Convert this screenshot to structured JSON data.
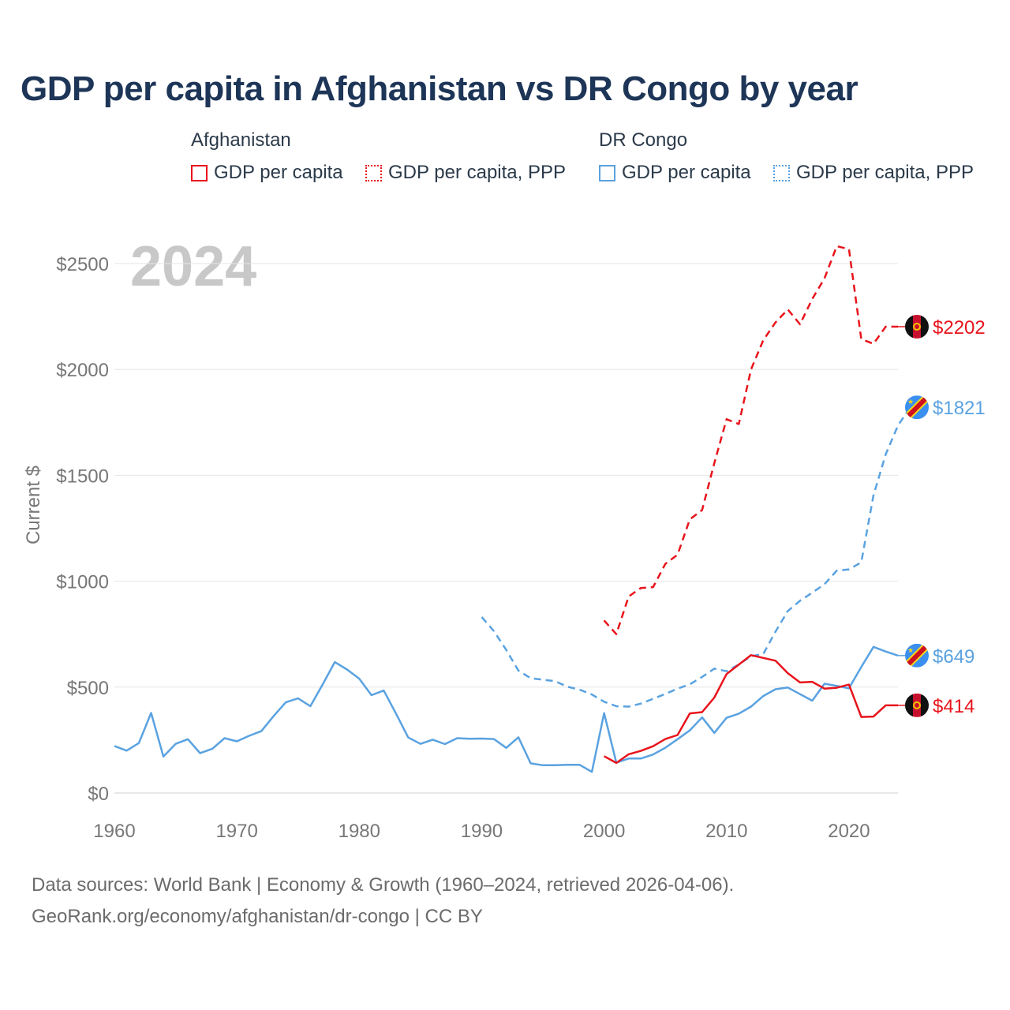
{
  "title": "GDP per capita in Afghanistan vs DR Congo by year",
  "legend": {
    "groups": [
      {
        "name": "Afghanistan",
        "items": [
          {
            "label": "GDP per capita",
            "color": "#e8141c",
            "style": "solid"
          },
          {
            "label": "GDP per capita, PPP",
            "color": "#e8141c",
            "style": "dotted"
          }
        ]
      },
      {
        "name": "DR Congo",
        "items": [
          {
            "label": "GDP per capita",
            "color": "#5aa2e0",
            "style": "solid"
          },
          {
            "label": "GDP per capita, PPP",
            "color": "#5aa2e0",
            "style": "dotted"
          }
        ]
      }
    ]
  },
  "year_label": "2024",
  "footer": {
    "line1": "Data sources: World Bank | Economy & Growth (1960–2024, retrieved 2026-04-06).",
    "line2": "GeoRank.org/economy/afghanistan/dr-congo | CC BY"
  },
  "end_labels": [
    {
      "series": "af_ppp",
      "text": "$2202",
      "color": "#e8141c",
      "flag": "afghanistan-flag"
    },
    {
      "series": "cd_ppp",
      "text": "$1821",
      "color": "#5aa2e0",
      "flag": "dr-congo-flag"
    },
    {
      "series": "cd_gdp",
      "text": "$649",
      "color": "#5aa2e0",
      "flag": "dr-congo-flag"
    },
    {
      "series": "af_gdp",
      "text": "$414",
      "color": "#e8141c",
      "flag": "afghanistan-flag"
    }
  ],
  "chart_data": {
    "type": "line",
    "ylabel": "Current $",
    "xlabel": "",
    "xlim": [
      1960,
      2024
    ],
    "ylim": [
      0,
      2650
    ],
    "xticks": [
      1960,
      1970,
      1980,
      1990,
      2000,
      2010,
      2020
    ],
    "yticks": [
      0,
      500,
      1000,
      1500,
      2000,
      2500
    ],
    "ytick_labels": [
      "$0",
      "$500",
      "$1000",
      "$1500",
      "$2000",
      "$2500"
    ],
    "grid": true,
    "series": [
      {
        "id": "cd_gdp",
        "name": "DR Congo — GDP per capita",
        "color": "#5aa2e0",
        "dash": "solid",
        "start": 1960,
        "values": [
          222,
          200,
          236,
          378,
          172,
          232,
          254,
          188,
          209,
          259,
          244,
          270,
          292,
          363,
          428,
          447,
          410,
          512,
          618,
          583,
          540,
          462,
          484,
          375,
          262,
          232,
          252,
          231,
          259,
          256,
          257,
          255,
          213,
          263,
          140,
          131,
          131,
          133,
          133,
          100,
          377,
          143,
          163,
          163,
          182,
          214,
          254,
          296,
          357,
          284,
          355,
          375,
          408,
          458,
          490,
          498,
          467,
          436,
          516,
          506,
          494,
          595,
          690,
          668,
          649
        ]
      },
      {
        "id": "cd_ppp",
        "name": "DR Congo — GDP per capita, PPP",
        "color": "#5aa2e0",
        "dash": "dashed",
        "start": 1990,
        "values": [
          831,
          764,
          676,
          578,
          542,
          535,
          528,
          502,
          488,
          465,
          431,
          410,
          408,
          422,
          445,
          468,
          493,
          513,
          548,
          587,
          575,
          607,
          646,
          656,
          762,
          859,
          908,
          946,
          986,
          1050,
          1056,
          1089,
          1406,
          1599,
          1735,
          1821
        ]
      },
      {
        "id": "af_gdp",
        "name": "Afghanistan — GDP per capita",
        "color": "#e8141c",
        "dash": "solid",
        "start": 2000,
        "values": [
          174,
          142,
          183,
          199,
          221,
          255,
          274,
          376,
          382,
          451,
          562,
          606,
          651,
          638,
          625,
          566,
          522,
          525,
          493,
          497,
          512,
          359,
          361,
          414,
          414
        ]
      },
      {
        "id": "af_ppp",
        "name": "Afghanistan — GDP per capita, PPP",
        "color": "#e8141c",
        "dash": "dashed",
        "start": 2000,
        "values": [
          815,
          750,
          928,
          968,
          972,
          1082,
          1125,
          1292,
          1336,
          1558,
          1765,
          1742,
          2000,
          2138,
          2222,
          2283,
          2213,
          2333,
          2430,
          2582,
          2568,
          2143,
          2121,
          2202,
          2202
        ]
      }
    ]
  }
}
